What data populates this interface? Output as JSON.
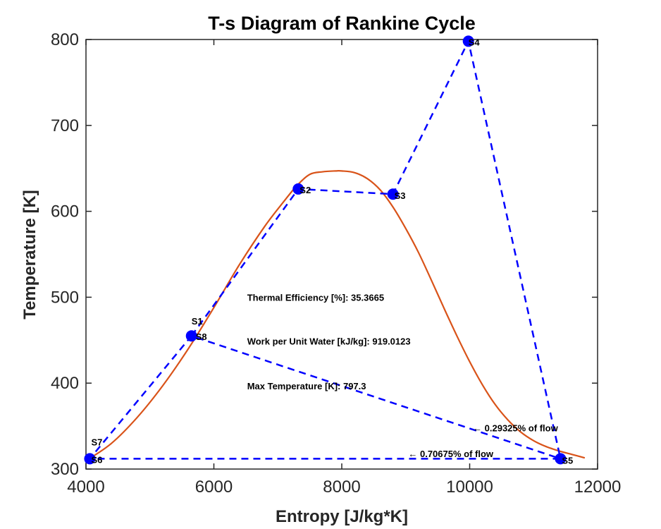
{
  "chart_data": {
    "type": "line",
    "title": "T-s Diagram of Rankine Cycle",
    "xlabel": "Entropy [J/kg*K]",
    "ylabel": "Temperature [K]",
    "xlim": [
      4000,
      12000
    ],
    "ylim": [
      300,
      800
    ],
    "xticks": [
      4000,
      6000,
      8000,
      10000,
      12000
    ],
    "yticks": [
      300,
      400,
      500,
      600,
      700,
      800
    ],
    "grid": false,
    "colors": {
      "cycle": "#0000ff",
      "dome": "#d95319",
      "axes": "#262626"
    },
    "saturation_dome": {
      "x": [
        4030,
        4400,
        4800,
        5200,
        5600,
        6000,
        6400,
        6800,
        7100,
        7300,
        7500,
        7700,
        7900,
        8000,
        8200,
        8400,
        8600,
        8800,
        9000,
        9200,
        9400,
        9600,
        9800,
        10000,
        10200,
        10400,
        10600,
        10800,
        11000,
        11200,
        11400,
        11600,
        11800
      ],
      "y": [
        311,
        330,
        360,
        397,
        440,
        488,
        538,
        583,
        612,
        630,
        643,
        646,
        647,
        647,
        645,
        638,
        625,
        605,
        580,
        552,
        520,
        487,
        455,
        425,
        398,
        375,
        357,
        343,
        333,
        326,
        321,
        317,
        313
      ]
    },
    "cycle_path": {
      "x": [
        5650,
        7320,
        8800,
        9980,
        11420,
        4060,
        5650,
        11420
      ],
      "y": [
        455,
        626,
        620,
        798,
        312,
        312,
        455,
        312
      ]
    },
    "state_points": [
      {
        "label": "S1",
        "x": 5650,
        "y": 455
      },
      {
        "label": "S2",
        "x": 7320,
        "y": 626
      },
      {
        "label": "S3",
        "x": 8800,
        "y": 620
      },
      {
        "label": "S4",
        "x": 9980,
        "y": 798
      },
      {
        "label": "S5",
        "x": 11420,
        "y": 312
      },
      {
        "label": "S6",
        "x": 4060,
        "y": 312
      },
      {
        "label": "S7",
        "x": 4060,
        "y": 312
      },
      {
        "label": "S8",
        "x": 5650,
        "y": 455
      }
    ],
    "annotations": [
      {
        "text": "Thermal Efficiency [%]: 35.3665",
        "x": 6520,
        "y": 500
      },
      {
        "text": "Work per Unit Water [kJ/kg]: 919.0123",
        "x": 6520,
        "y": 449
      },
      {
        "text": "Max Temperature [K]: 797.3",
        "x": 6520,
        "y": 397
      },
      {
        "text": "← 0.29325% of flow",
        "x": 10050,
        "y": 348
      },
      {
        "text": "← 0.70675% of flow",
        "x": 9040,
        "y": 318
      }
    ]
  }
}
